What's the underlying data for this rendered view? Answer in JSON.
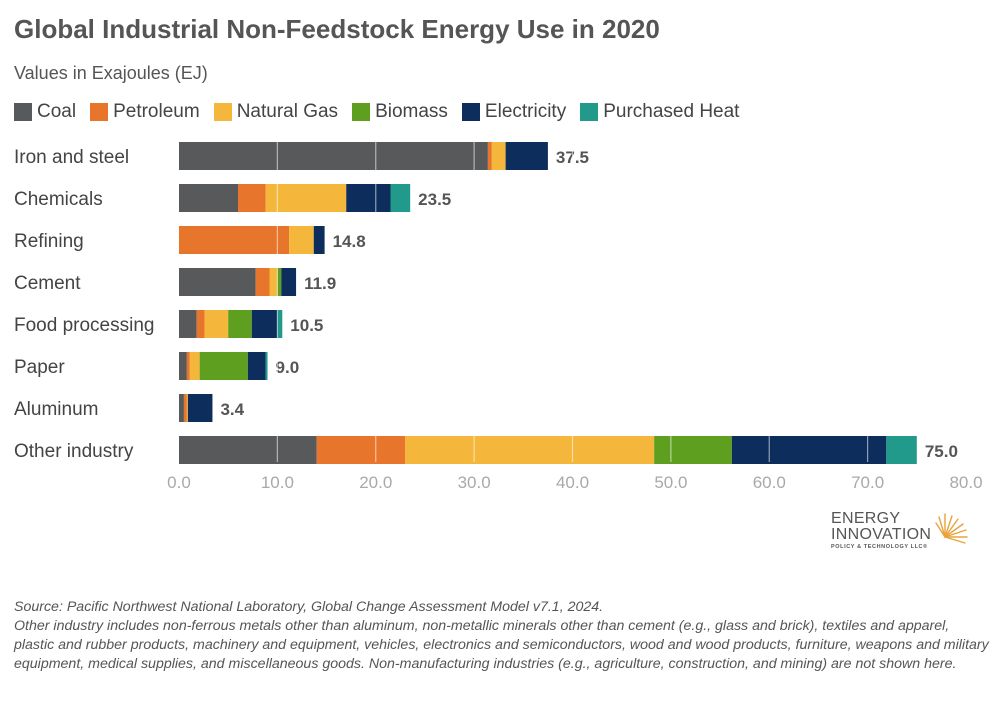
{
  "header": {
    "title": "Global Industrial Non-Feedstock Energy Use in 2020",
    "subtitle": "Values in Exajoules (EJ)"
  },
  "legend": [
    {
      "name": "Coal",
      "color": "#58595b"
    },
    {
      "name": "Petroleum",
      "color": "#e8752c"
    },
    {
      "name": "Natural Gas",
      "color": "#f4b63b"
    },
    {
      "name": "Biomass",
      "color": "#5e9f1f"
    },
    {
      "name": "Electricity",
      "color": "#0d2d5c"
    },
    {
      "name": "Purchased Heat",
      "color": "#229a8b"
    }
  ],
  "chart_data": {
    "type": "bar",
    "orientation": "horizontal",
    "stacked": true,
    "title": "Global Industrial Non-Feedstock Energy Use in 2020",
    "subtitle": "Values in Exajoules (EJ)",
    "xlabel": "",
    "ylabel": "",
    "xlim": [
      0,
      80
    ],
    "x_ticks": [
      "0.0",
      "10.0",
      "20.0",
      "30.0",
      "40.0",
      "50.0",
      "60.0",
      "70.0",
      "80.0"
    ],
    "grid": true,
    "legend_position": "top",
    "categories": [
      "Iron and steel",
      "Chemicals",
      "Refining",
      "Cement",
      "Food processing",
      "Paper",
      "Aluminum",
      "Other industry"
    ],
    "totals": [
      "37.5",
      "23.5",
      "14.8",
      "11.9",
      "10.5",
      "9.0",
      "3.4",
      "75.0"
    ],
    "series": [
      {
        "name": "Coal",
        "color": "#58595b",
        "values": [
          31.4,
          6.0,
          0.0,
          7.8,
          1.8,
          0.8,
          0.5,
          14.0
        ]
      },
      {
        "name": "Petroleum",
        "color": "#e8752c",
        "values": [
          0.4,
          2.8,
          11.2,
          1.4,
          0.8,
          0.3,
          0.3,
          9.0
        ]
      },
      {
        "name": "Natural Gas",
        "color": "#f4b63b",
        "values": [
          1.4,
          8.2,
          2.5,
          0.8,
          2.4,
          1.0,
          0.1,
          25.3
        ]
      },
      {
        "name": "Biomass",
        "color": "#5e9f1f",
        "values": [
          0.0,
          0.0,
          0.0,
          0.4,
          2.4,
          4.9,
          0.0,
          7.9
        ]
      },
      {
        "name": "Electricity",
        "color": "#0d2d5c",
        "values": [
          4.3,
          4.5,
          1.1,
          1.5,
          2.6,
          1.8,
          2.5,
          15.7
        ]
      },
      {
        "name": "Purchased Heat",
        "color": "#229a8b",
        "values": [
          0.0,
          2.0,
          0.0,
          0.0,
          0.5,
          0.2,
          0.0,
          3.1
        ]
      }
    ]
  },
  "logo": {
    "line1": "ENERGY",
    "line2": "INNOVATION",
    "tagline": "POLICY & TECHNOLOGY LLC®"
  },
  "footnote": {
    "source": "Source: Pacific Northwest National Laboratory, Global Change Assessment Model v7.1, 2024.",
    "note": "Other industry includes non-ferrous metals other than aluminum, non-metallic minerals other than cement (e.g., glass and brick), textiles and apparel, plastic and rubber products, machinery and equipment, vehicles, electronics and semiconductors, wood and wood products, furniture, weapons and military equipment, medical supplies, and miscellaneous goods. Non-manufacturing industries (e.g., agriculture, construction, and mining) are not shown here."
  }
}
